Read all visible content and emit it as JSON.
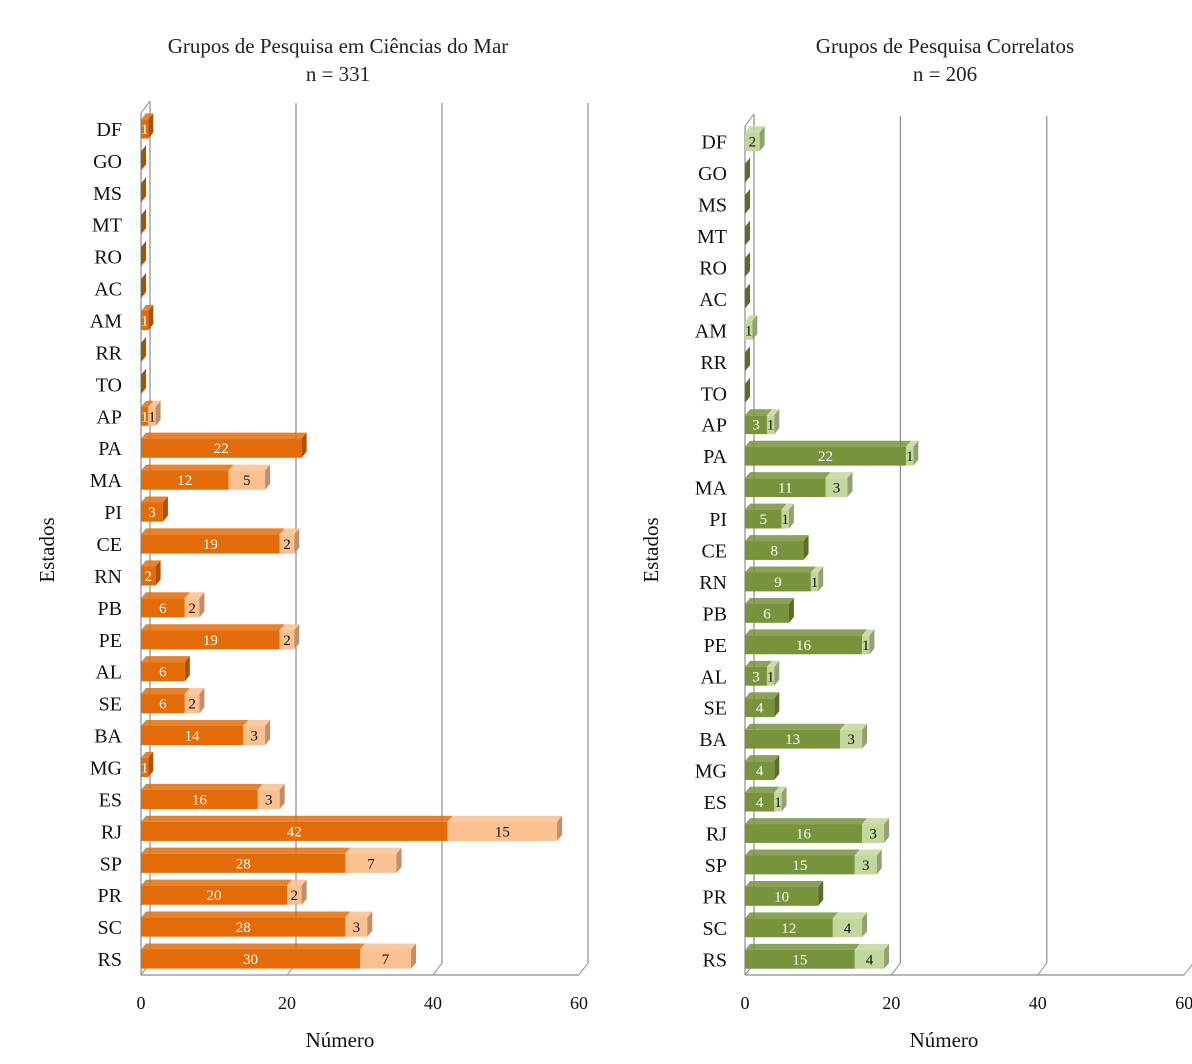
{
  "chart_data": [
    {
      "type": "bar",
      "orientation": "horizontal",
      "stacked": true,
      "title": "Grupos de Pesquisa em Ciências do Mar",
      "subtitle": "n = 331",
      "xlabel": "Número",
      "ylabel": "Estados",
      "xlim": [
        0,
        60
      ],
      "xticks": [
        0,
        20,
        40,
        60
      ],
      "categories": [
        "DF",
        "GO",
        "MS",
        "MT",
        "RO",
        "AC",
        "AM",
        "RR",
        "TO",
        "AP",
        "PA",
        "MA",
        "PI",
        "CE",
        "RN",
        "PB",
        "PE",
        "AL",
        "SE",
        "BA",
        "MG",
        "ES",
        "RJ",
        "SP",
        "PR",
        "SC",
        "RS"
      ],
      "series": [
        {
          "values": [
            1,
            0,
            0,
            0,
            0,
            0,
            1,
            0,
            0,
            1,
            22,
            12,
            3,
            19,
            2,
            6,
            19,
            6,
            6,
            14,
            1,
            16,
            42,
            28,
            20,
            28,
            30
          ],
          "color": "#e36c0a"
        },
        {
          "values": [
            0,
            0,
            0,
            0,
            0,
            0,
            0,
            0,
            0,
            1,
            0,
            5,
            0,
            2,
            0,
            2,
            2,
            0,
            2,
            3,
            0,
            3,
            15,
            7,
            2,
            3,
            7
          ],
          "color": "#fac090"
        }
      ],
      "grid": true
    },
    {
      "type": "bar",
      "orientation": "horizontal",
      "stacked": true,
      "title": "Grupos de Pesquisa Correlatos",
      "subtitle": "n = 206",
      "xlabel": "Número",
      "ylabel": "Estados",
      "xlim": [
        0,
        60
      ],
      "xticks": [
        0,
        20,
        40,
        60
      ],
      "categories": [
        "DF",
        "GO",
        "MS",
        "MT",
        "RO",
        "AC",
        "AM",
        "RR",
        "TO",
        "AP",
        "PA",
        "MA",
        "PI",
        "CE",
        "RN",
        "PB",
        "PE",
        "AL",
        "SE",
        "BA",
        "MG",
        "ES",
        "RJ",
        "SP",
        "PR",
        "SC",
        "RS"
      ],
      "series": [
        {
          "values": [
            0,
            0,
            0,
            0,
            0,
            0,
            0,
            0,
            0,
            3,
            22,
            11,
            5,
            8,
            9,
            6,
            16,
            3,
            4,
            13,
            4,
            4,
            16,
            15,
            10,
            12,
            15
          ],
          "color": "#77933c"
        },
        {
          "values": [
            2,
            0,
            0,
            0,
            0,
            0,
            1,
            0,
            0,
            1,
            1,
            3,
            1,
            0,
            1,
            0,
            1,
            1,
            0,
            3,
            0,
            1,
            3,
            3,
            0,
            4,
            4
          ],
          "color": "#c3d69b"
        }
      ],
      "grid": true
    }
  ]
}
